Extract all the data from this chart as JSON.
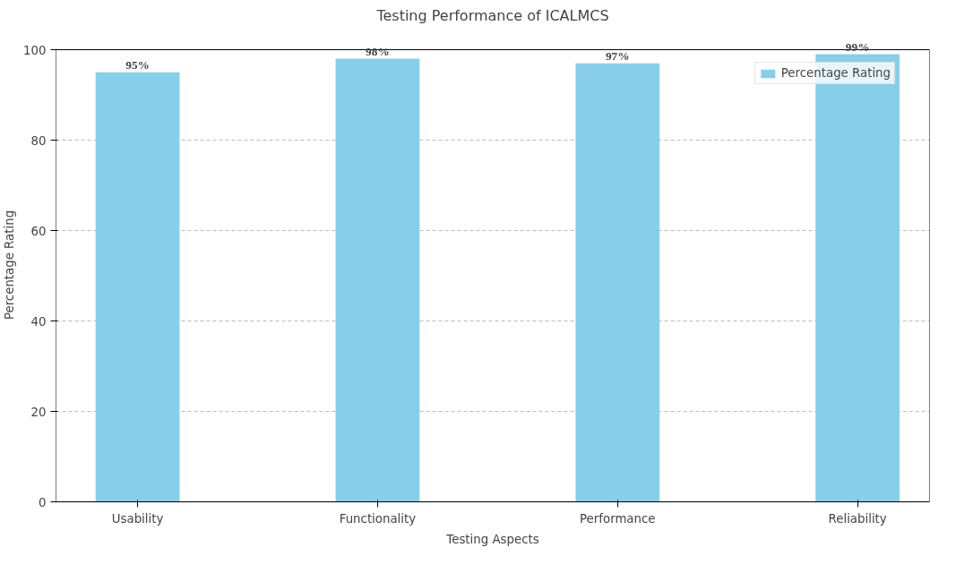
{
  "chart_data": {
    "type": "bar",
    "title": "Testing Performance of ICALMCS",
    "xlabel": "Testing Aspects",
    "ylabel": "Percentage Rating",
    "categories": [
      "Usability",
      "Functionality",
      "Performance",
      "Reliability"
    ],
    "series": [
      {
        "name": "Percentage Rating",
        "color": "#87ceeb",
        "values": [
          95,
          98,
          97,
          99
        ],
        "value_labels": [
          "95%",
          "98%",
          "97%",
          "99%"
        ]
      }
    ],
    "ylim": [
      0,
      100
    ],
    "yticks": [
      0,
      20,
      40,
      60,
      80,
      100
    ],
    "grid": "y",
    "legend": "top right"
  }
}
